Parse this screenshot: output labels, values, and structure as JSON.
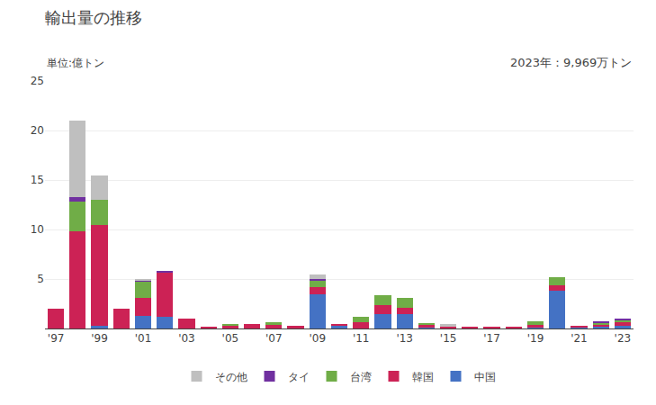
{
  "chart_data": {
    "type": "bar",
    "title": "輸出量の推移",
    "subtitle": "単位:億トン",
    "annotations": [
      "2023年：9,969万トン"
    ],
    "categories": [
      "'97",
      null,
      "'99",
      null,
      "'01",
      null,
      "'03",
      null,
      "'05",
      null,
      "'07",
      null,
      "'09",
      null,
      "'11",
      null,
      "'13",
      null,
      "'15",
      null,
      "'17",
      null,
      "'19",
      null,
      "'21",
      null,
      "'23"
    ],
    "series": [
      {
        "name": "中国",
        "color": "#4472C4",
        "values": [
          0.0,
          0.0,
          0.3,
          0.0,
          1.3,
          1.2,
          0.0,
          0.0,
          0.0,
          0.0,
          0.0,
          0.0,
          3.5,
          0.3,
          0.0,
          1.5,
          1.5,
          0.1,
          0.0,
          0.0,
          0.0,
          0.0,
          0.1,
          3.8,
          0.1,
          0.2,
          0.3
        ]
      },
      {
        "name": "韓国",
        "color": "#CC2255",
        "values": [
          2.0,
          9.8,
          10.2,
          2.0,
          1.8,
          4.4,
          1.0,
          0.2,
          0.3,
          0.5,
          0.4,
          0.3,
          0.7,
          0.1,
          0.6,
          0.9,
          0.6,
          0.3,
          0.2,
          0.1,
          0.1,
          0.2,
          0.3,
          0.6,
          0.2,
          0.2,
          0.3
        ]
      },
      {
        "name": "台湾",
        "color": "#70AD47",
        "values": [
          0.0,
          3.0,
          2.5,
          0.0,
          1.7,
          0.0,
          0.0,
          0.0,
          0.1,
          0.0,
          0.2,
          0.0,
          0.7,
          0.0,
          0.6,
          1.0,
          1.0,
          0.1,
          0.0,
          0.0,
          0.0,
          0.0,
          0.3,
          0.8,
          0.0,
          0.2,
          0.3
        ]
      },
      {
        "name": "タイ",
        "color": "#7030A0",
        "values": [
          0.0,
          0.5,
          0.0,
          0.0,
          0.1,
          0.2,
          0.0,
          0.0,
          0.0,
          0.0,
          0.0,
          0.0,
          0.1,
          0.0,
          0.0,
          0.0,
          0.0,
          0.0,
          0.0,
          0.0,
          0.0,
          0.0,
          0.0,
          0.0,
          0.0,
          0.05,
          0.05
        ]
      },
      {
        "name": "その他",
        "color": "#BFBFBF",
        "values": [
          0.0,
          7.7,
          2.5,
          0.0,
          0.1,
          0.0,
          0.0,
          0.0,
          0.0,
          0.0,
          0.0,
          0.0,
          0.5,
          0.0,
          0.0,
          0.0,
          0.0,
          0.0,
          0.3,
          0.0,
          0.0,
          0.0,
          0.0,
          0.0,
          0.0,
          0.0,
          0.0
        ]
      }
    ],
    "ylim": [
      0,
      25
    ],
    "yticks": [
      5,
      10,
      15,
      20,
      25
    ],
    "grid": true,
    "stacked": true,
    "legend": "bottom"
  }
}
